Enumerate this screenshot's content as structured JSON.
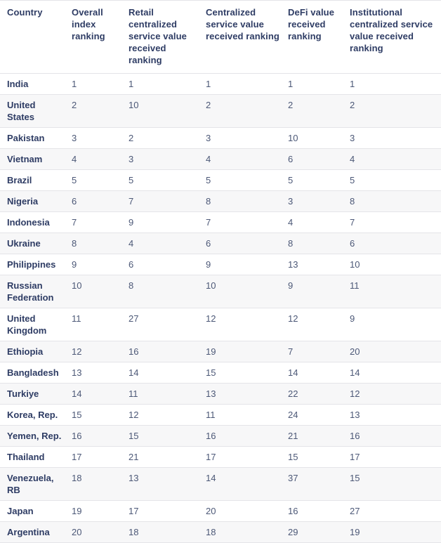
{
  "colors": {
    "header_text": "#2e3c64",
    "country_text": "#2e3c64",
    "number_text": "#4c5877",
    "row_stripe_bg": "#f7f7f8",
    "row_border": "#e4e4e8",
    "background": "#ffffff"
  },
  "chart_data": {
    "type": "table",
    "columns": [
      "Country",
      "Overall index ranking",
      "Retail centralized service value received ranking",
      "Centralized service value received ranking",
      "DeFi value received ranking",
      "Institutional centralized service value received ranking"
    ],
    "rows": [
      {
        "country": "India",
        "values": [
          1,
          1,
          1,
          1,
          1
        ]
      },
      {
        "country": "United States",
        "values": [
          2,
          10,
          2,
          2,
          2
        ]
      },
      {
        "country": "Pakistan",
        "values": [
          3,
          2,
          3,
          10,
          3
        ]
      },
      {
        "country": "Vietnam",
        "values": [
          4,
          3,
          4,
          6,
          4
        ]
      },
      {
        "country": "Brazil",
        "values": [
          5,
          5,
          5,
          5,
          5
        ]
      },
      {
        "country": "Nigeria",
        "values": [
          6,
          7,
          8,
          3,
          8
        ]
      },
      {
        "country": "Indonesia",
        "values": [
          7,
          9,
          7,
          4,
          7
        ]
      },
      {
        "country": "Ukraine",
        "values": [
          8,
          4,
          6,
          8,
          6
        ]
      },
      {
        "country": "Philippines",
        "values": [
          9,
          6,
          9,
          13,
          10
        ]
      },
      {
        "country": "Russian Federation",
        "values": [
          10,
          8,
          10,
          9,
          11
        ]
      },
      {
        "country": "United Kingdom",
        "values": [
          11,
          27,
          12,
          12,
          9
        ]
      },
      {
        "country": "Ethiopia",
        "values": [
          12,
          16,
          19,
          7,
          20
        ]
      },
      {
        "country": "Bangladesh",
        "values": [
          13,
          14,
          15,
          14,
          14
        ]
      },
      {
        "country": "Turkiye",
        "values": [
          14,
          11,
          13,
          22,
          12
        ]
      },
      {
        "country": "Korea, Rep.",
        "values": [
          15,
          12,
          11,
          24,
          13
        ]
      },
      {
        "country": "Yemen, Rep.",
        "values": [
          16,
          15,
          16,
          21,
          16
        ]
      },
      {
        "country": "Thailand",
        "values": [
          17,
          21,
          17,
          15,
          17
        ]
      },
      {
        "country": "Venezuela, RB",
        "values": [
          18,
          13,
          14,
          37,
          15
        ]
      },
      {
        "country": "Japan",
        "values": [
          19,
          17,
          20,
          16,
          27
        ]
      },
      {
        "country": "Argentina",
        "values": [
          20,
          18,
          18,
          29,
          19
        ]
      }
    ]
  }
}
